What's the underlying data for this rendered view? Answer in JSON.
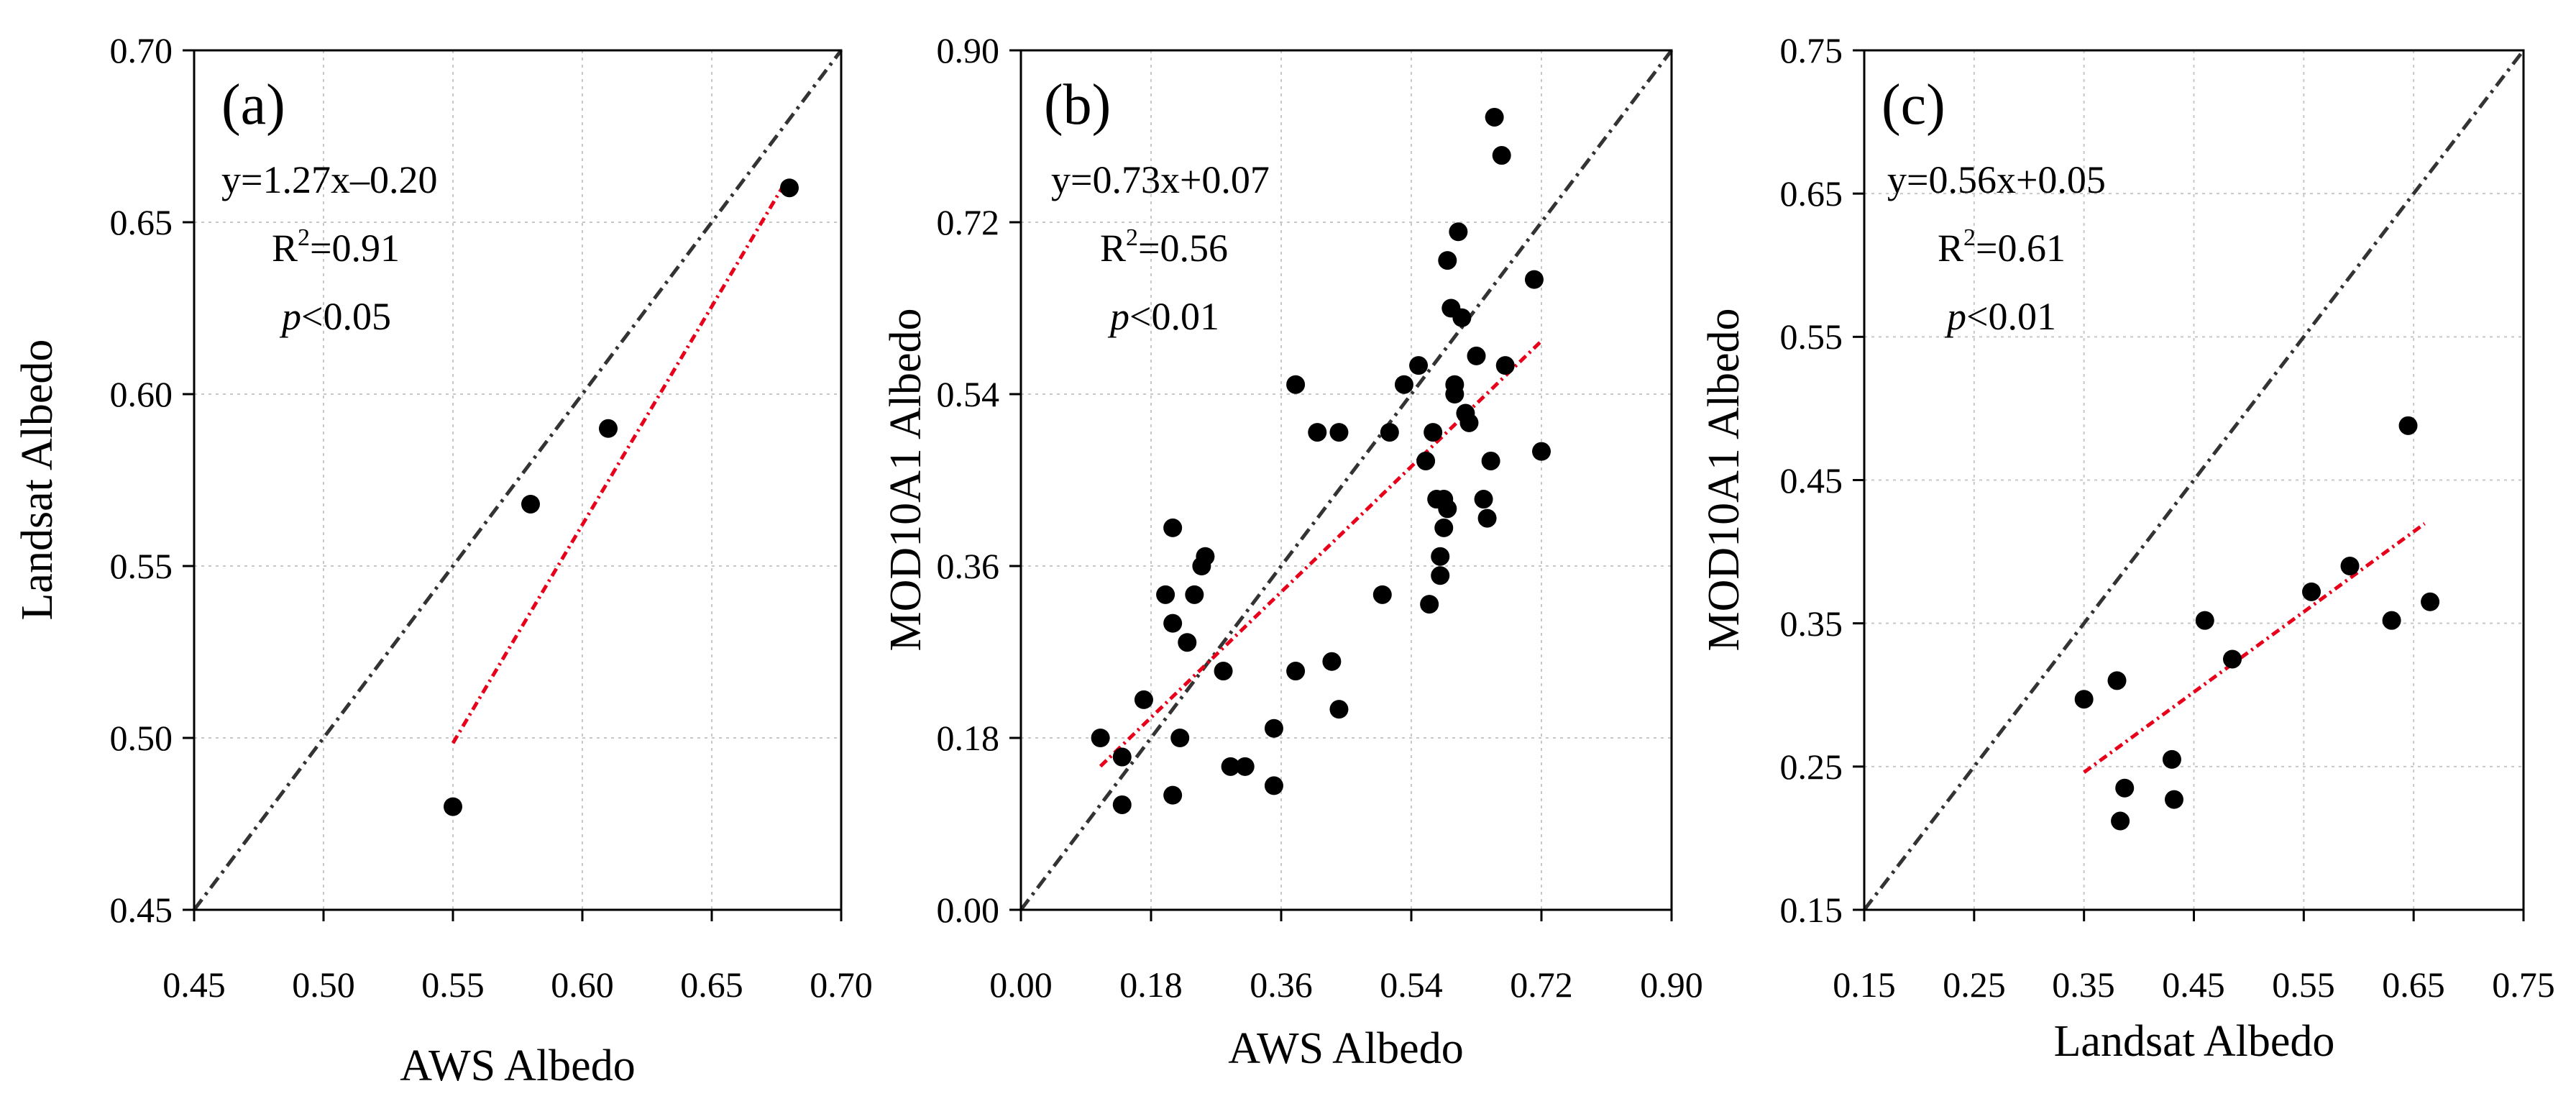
{
  "chart_data": [
    {
      "type": "scatter",
      "label": "(a)",
      "xlabel": "AWS Albedo",
      "ylabel": "Landsat Albedo",
      "xlim": [
        0.45,
        0.7
      ],
      "ylim": [
        0.45,
        0.7
      ],
      "xticks": [
        "0.45",
        "0.50",
        "0.55",
        "0.60",
        "0.65",
        "0.70"
      ],
      "yticks": [
        "0.45",
        "0.50",
        "0.55",
        "0.60",
        "0.65",
        "0.70"
      ],
      "grid": true,
      "annotations": {
        "equation": "y=1.27x–0.20",
        "r2_label": "R",
        "r2_sup": "2",
        "r2_value": "=0.91",
        "p_symbol": "p",
        "p_value": "<0.05"
      },
      "points": [
        [
          0.55,
          0.48
        ],
        [
          0.58,
          0.568
        ],
        [
          0.61,
          0.59
        ],
        [
          0.68,
          0.66
        ]
      ],
      "identity": [
        0.45,
        0.7
      ],
      "fit": {
        "slope": 1.27,
        "intercept": -0.2,
        "x_range": [
          0.55,
          0.677
        ]
      },
      "colors": {
        "fit": "#e8001a",
        "identity": "#333333",
        "points": "#000000"
      }
    },
    {
      "type": "scatter",
      "label": "(b)",
      "xlabel": "AWS Albedo",
      "ylabel": "MOD10A1 Albedo",
      "xlim": [
        0.0,
        0.9
      ],
      "ylim": [
        0.0,
        0.9
      ],
      "xticks": [
        "0.00",
        "0.18",
        "0.36",
        "0.54",
        "0.72",
        "0.90"
      ],
      "yticks": [
        "0.00",
        "0.18",
        "0.36",
        "0.54",
        "0.72",
        "0.90"
      ],
      "grid": true,
      "annotations": {
        "equation": "y=0.73x+0.07",
        "r2_label": "R",
        "r2_sup": "2",
        "r2_value": "=0.56",
        "p_symbol": "p",
        "p_value": "<0.01"
      },
      "points": [
        [
          0.11,
          0.18
        ],
        [
          0.14,
          0.11
        ],
        [
          0.14,
          0.16
        ],
        [
          0.17,
          0.22
        ],
        [
          0.2,
          0.33
        ],
        [
          0.21,
          0.4
        ],
        [
          0.21,
          0.3
        ],
        [
          0.21,
          0.12
        ],
        [
          0.22,
          0.18
        ],
        [
          0.23,
          0.28
        ],
        [
          0.24,
          0.33
        ],
        [
          0.25,
          0.36
        ],
        [
          0.255,
          0.37
        ],
        [
          0.28,
          0.25
        ],
        [
          0.29,
          0.15
        ],
        [
          0.31,
          0.15
        ],
        [
          0.35,
          0.13
        ],
        [
          0.35,
          0.19
        ],
        [
          0.38,
          0.25
        ],
        [
          0.38,
          0.55
        ],
        [
          0.41,
          0.5
        ],
        [
          0.43,
          0.26
        ],
        [
          0.44,
          0.21
        ],
        [
          0.44,
          0.5
        ],
        [
          0.5,
          0.33
        ],
        [
          0.51,
          0.5
        ],
        [
          0.53,
          0.55
        ],
        [
          0.55,
          0.57
        ],
        [
          0.56,
          0.47
        ],
        [
          0.565,
          0.32
        ],
        [
          0.57,
          0.5
        ],
        [
          0.575,
          0.43
        ],
        [
          0.58,
          0.35
        ],
        [
          0.58,
          0.37
        ],
        [
          0.585,
          0.43
        ],
        [
          0.585,
          0.4
        ],
        [
          0.59,
          0.68
        ],
        [
          0.59,
          0.42
        ],
        [
          0.595,
          0.63
        ],
        [
          0.6,
          0.54
        ],
        [
          0.6,
          0.55
        ],
        [
          0.605,
          0.71
        ],
        [
          0.61,
          0.62
        ],
        [
          0.615,
          0.52
        ],
        [
          0.62,
          0.51
        ],
        [
          0.63,
          0.58
        ],
        [
          0.64,
          0.43
        ],
        [
          0.645,
          0.41
        ],
        [
          0.65,
          0.47
        ],
        [
          0.655,
          0.83
        ],
        [
          0.665,
          0.79
        ],
        [
          0.67,
          0.57
        ],
        [
          0.71,
          0.66
        ],
        [
          0.72,
          0.48
        ]
      ],
      "identity": [
        0.0,
        0.9
      ],
      "fit": {
        "slope": 0.73,
        "intercept": 0.07,
        "x_range": [
          0.11,
          0.72
        ]
      },
      "colors": {
        "fit": "#e8001a",
        "identity": "#333333",
        "points": "#000000"
      }
    },
    {
      "type": "scatter",
      "label": "(c)",
      "xlabel": "Landsat Albedo",
      "ylabel": "MOD10A1 Albedo",
      "xlim": [
        0.15,
        0.75
      ],
      "ylim": [
        0.15,
        0.75
      ],
      "xticks": [
        "0.15",
        "0.25",
        "0.35",
        "0.45",
        "0.55",
        "0.65",
        "0.75"
      ],
      "yticks": [
        "0.15",
        "0.25",
        "0.35",
        "0.45",
        "0.55",
        "0.65",
        "0.75"
      ],
      "grid": true,
      "annotations": {
        "equation": "y=0.56x+0.05",
        "r2_label": "R",
        "r2_sup": "2",
        "r2_value": "=0.61",
        "p_symbol": "p",
        "p_value": "<0.01"
      },
      "points": [
        [
          0.35,
          0.297
        ],
        [
          0.38,
          0.31
        ],
        [
          0.383,
          0.212
        ],
        [
          0.387,
          0.235
        ],
        [
          0.43,
          0.255
        ],
        [
          0.432,
          0.227
        ],
        [
          0.46,
          0.352
        ],
        [
          0.485,
          0.325
        ],
        [
          0.557,
          0.372
        ],
        [
          0.592,
          0.39
        ],
        [
          0.63,
          0.352
        ],
        [
          0.645,
          0.488
        ],
        [
          0.665,
          0.365
        ]
      ],
      "identity": [
        0.15,
        0.75
      ],
      "fit": {
        "slope": 0.56,
        "intercept": 0.05,
        "x_range": [
          0.35,
          0.66
        ]
      },
      "colors": {
        "fit": "#e8001a",
        "identity": "#333333",
        "points": "#000000"
      }
    }
  ]
}
